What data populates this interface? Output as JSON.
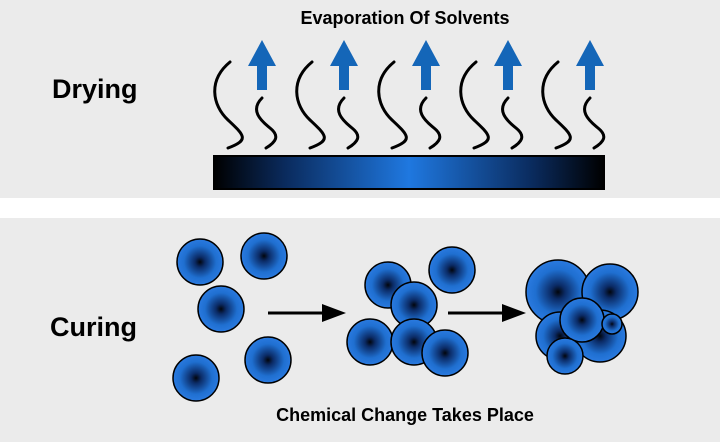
{
  "drying": {
    "label": "Drying",
    "caption": "Evaporation Of Solvents"
  },
  "curing": {
    "label": "Curing",
    "caption": "Chemical Change Takes Place"
  },
  "colors": {
    "panel_background": "#ebebeb",
    "arrow_blue": "#1466b8",
    "coating_blue": "#1a6fd6",
    "coating_dark": "#000000",
    "particle_blue": "#1f6fd0",
    "particle_core": "#050a14"
  },
  "icons": {
    "vapor": "wavy-line-icon",
    "evaporation_arrow": "up-arrow-icon",
    "process_arrow": "right-arrow-icon",
    "particle": "particle-circle-icon"
  }
}
